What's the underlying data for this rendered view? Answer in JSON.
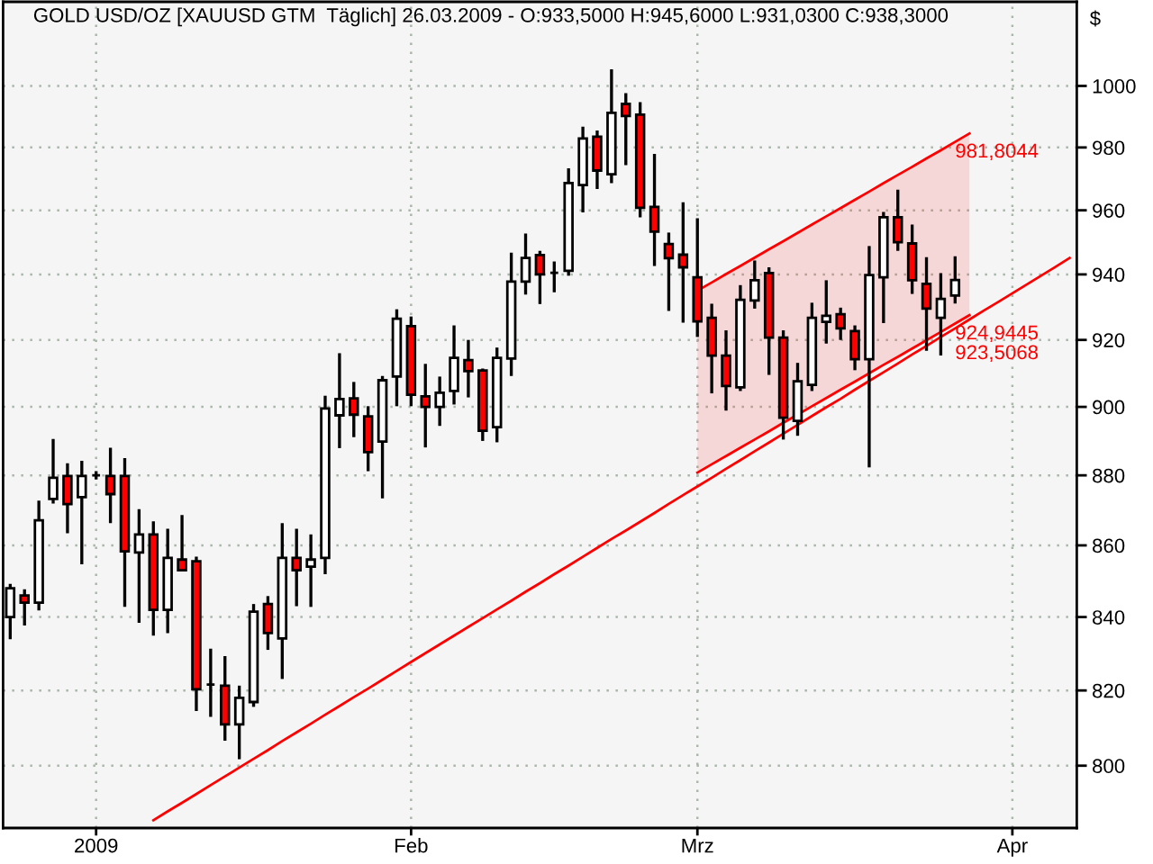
{
  "chart_data": {
    "type": "candlestick",
    "title": "GOLD USD/OZ [XAUUSD GTM  Täglich] 26.03.2009 - O:933,5000 H:945,6000 L:931,0300 C:938,3000",
    "ylabel": "$",
    "categories": [
      null,
      null,
      null,
      null,
      null,
      null,
      "2009",
      null,
      null,
      null,
      null,
      null,
      null,
      null,
      null,
      null,
      null,
      null,
      null,
      null,
      null,
      null,
      null,
      null,
      null,
      null,
      null,
      null,
      "Feb",
      null,
      null,
      null,
      null,
      null,
      null,
      null,
      null,
      null,
      null,
      null,
      null,
      null,
      null,
      null,
      null,
      null,
      null,
      null,
      "Mrz",
      null,
      null,
      null,
      null,
      null,
      null,
      null,
      null,
      null,
      null,
      null,
      null,
      null,
      null,
      null,
      null,
      null,
      null,
      null,
      null,
      null,
      "Apr",
      null,
      null,
      null,
      null
    ],
    "ohlc": [
      [
        840.0,
        849.2,
        833.9,
        848.0
      ],
      [
        846.0,
        847.7,
        837.7,
        844.0
      ],
      [
        844.0,
        872.7,
        841.8,
        867.1
      ],
      [
        873.2,
        890.6,
        871.9,
        879.3
      ],
      [
        879.8,
        883.5,
        863.4,
        871.7
      ],
      [
        873.7,
        884.2,
        854.7,
        879.8
      ],
      [
        880.0,
        881.2,
        878.8,
        880.0
      ],
      [
        879.8,
        888.0,
        866.3,
        874.6
      ],
      [
        879.8,
        885.0,
        842.8,
        858.3
      ],
      [
        858.0,
        870.3,
        838.4,
        863.1
      ],
      [
        863.1,
        866.8,
        834.9,
        842.0
      ],
      [
        842.0,
        864.7,
        835.6,
        856.5
      ],
      [
        856.0,
        868.6,
        852.8,
        853.0
      ],
      [
        855.5,
        856.8,
        814.5,
        820.3
      ],
      [
        821.6,
        831.3,
        812.9,
        821.6
      ],
      [
        821.3,
        829.3,
        806.6,
        810.9
      ],
      [
        810.9,
        821.3,
        801.7,
        818.0
      ],
      [
        816.9,
        843.6,
        815.6,
        841.5
      ],
      [
        843.6,
        845.8,
        831.0,
        835.6
      ],
      [
        834.1,
        866.3,
        823.1,
        856.5
      ],
      [
        856.5,
        864.7,
        843.0,
        853.0
      ],
      [
        854.0,
        863.1,
        842.8,
        856.0
      ],
      [
        856.5,
        903.3,
        851.9,
        899.5
      ],
      [
        897.5,
        916.0,
        887.9,
        902.3
      ],
      [
        902.5,
        907.4,
        891.1,
        897.7
      ],
      [
        897.2,
        900.2,
        881.2,
        886.7
      ],
      [
        889.8,
        909.2,
        873.4,
        907.9
      ],
      [
        909.0,
        929.3,
        900.2,
        926.4
      ],
      [
        924.2,
        927.1,
        900.2,
        903.6
      ],
      [
        903.1,
        912.8,
        888.1,
        900.0
      ],
      [
        900.0,
        909.0,
        894.4,
        904.2
      ],
      [
        904.7,
        924.4,
        900.7,
        914.6
      ],
      [
        913.9,
        920.0,
        902.8,
        910.6
      ],
      [
        910.8,
        911.4,
        890.0,
        893.0
      ],
      [
        894.0,
        917.7,
        889.6,
        914.6
      ],
      [
        914.4,
        946.7,
        909.2,
        937.8
      ],
      [
        937.8,
        952.7,
        933.8,
        945.1
      ],
      [
        946.0,
        947.3,
        930.9,
        940.0
      ],
      [
        940.5,
        944.0,
        934.5,
        940.5
      ],
      [
        941.1,
        973.3,
        939.6,
        968.6
      ],
      [
        968.0,
        986.7,
        959.3,
        982.9
      ],
      [
        983.5,
        985.5,
        966.7,
        972.6
      ],
      [
        971.4,
        1005.5,
        968.6,
        991.2
      ],
      [
        994.1,
        997.6,
        974.3,
        990.2
      ],
      [
        990.6,
        994.7,
        957.8,
        960.8
      ],
      [
        961.1,
        977.9,
        942.6,
        953.3
      ],
      [
        949.4,
        953.0,
        928.8,
        945.0
      ],
      [
        946.1,
        962.5,
        925.2,
        942.2
      ],
      [
        939.1,
        957.5,
        920.9,
        925.6
      ],
      [
        926.7,
        931.0,
        904.0,
        915.3
      ],
      [
        915.3,
        922.9,
        898.9,
        906.2
      ],
      [
        905.8,
        936.7,
        904.7,
        932.2
      ],
      [
        932.0,
        944.3,
        929.5,
        938.2
      ],
      [
        940.4,
        942.2,
        909.5,
        920.7
      ],
      [
        920.7,
        922.9,
        890.4,
        896.8
      ],
      [
        895.9,
        913.1,
        891.5,
        907.6
      ],
      [
        906.5,
        931.3,
        904.7,
        926.7
      ],
      [
        925.5,
        938.2,
        918.9,
        927.3
      ],
      [
        927.8,
        929.8,
        920.0,
        923.5
      ],
      [
        922.7,
        924.4,
        910.9,
        914.2
      ],
      [
        914.2,
        948.8,
        882.3,
        939.8
      ],
      [
        939.1,
        959.5,
        925.1,
        957.8
      ],
      [
        957.8,
        966.5,
        947.3,
        950.0
      ],
      [
        949.6,
        955.5,
        934.0,
        938.2
      ],
      [
        937.1,
        945.3,
        916.7,
        929.5
      ],
      [
        926.7,
        940.4,
        915.3,
        932.5
      ],
      [
        933.5,
        945.6,
        931.03,
        938.3
      ],
      null,
      null,
      null,
      null,
      null,
      null,
      null,
      null
    ],
    "colors": [
      "#ffffff",
      "#ff0000",
      "#ffffff",
      "#ffffff",
      "#ff0000",
      "#ffffff",
      "#000000",
      "#ff0000",
      "#ff0000",
      "#ffffff",
      "#ff0000",
      "#ffffff",
      "#ff0000",
      "#ff0000",
      "#000000",
      "#ff0000",
      "#ffffff",
      "#ffffff",
      "#ff0000",
      "#ffffff",
      "#ff0000",
      "#ffffff",
      "#ffffff",
      "#ffffff",
      "#ff0000",
      "#ff0000",
      "#ffffff",
      "#ffffff",
      "#ff0000",
      "#ff0000",
      "#ffffff",
      "#ffffff",
      "#ff0000",
      "#ff0000",
      "#ffffff",
      "#ffffff",
      "#ffffff",
      "#ff0000",
      "#000000",
      "#ffffff",
      "#ffffff",
      "#ff0000",
      "#ffffff",
      "#ff0000",
      "#ff0000",
      "#ff0000",
      "#ff0000",
      "#ff0000",
      "#ff0000",
      "#ff0000",
      "#ff0000",
      "#ffffff",
      "#ffffff",
      "#ff0000",
      "#ff0000",
      "#ffffff",
      "#ffffff",
      "#ffffff",
      "#ff0000",
      "#ff0000",
      "#ffffff",
      "#ffffff",
      "#ff0000",
      "#ff0000",
      "#ff0000",
      "#ffffff",
      "#ffffff",
      null,
      null,
      null,
      null,
      null,
      null,
      null,
      null
    ],
    "series": [
      {
        "type": "line",
        "color": "#ff0000",
        "values": [
          null,
          null,
          null,
          null,
          null,
          null,
          null,
          null,
          null,
          null,
          null,
          null,
          null,
          null,
          null,
          null,
          null,
          null,
          null,
          null,
          null,
          null,
          null,
          null,
          null,
          null,
          null,
          null,
          null,
          null,
          null,
          null,
          null,
          null,
          null,
          null,
          null,
          null,
          null,
          null,
          null,
          null,
          null,
          null,
          null,
          null,
          null,
          null,
          935.0,
          937.5,
          940.1,
          942.6,
          945.2,
          947.8,
          950.3,
          952.9,
          955.5,
          958.1,
          960.7,
          963.3,
          965.9,
          968.6,
          971.2,
          973.8,
          976.5,
          979.1,
          981.8044,
          984.5,
          null,
          null,
          null,
          null,
          null,
          null,
          null
        ],
        "upper": [
          null,
          null,
          null,
          null,
          null,
          null,
          null,
          null,
          null,
          null,
          null,
          null,
          null,
          null,
          null,
          null,
          null,
          null,
          null,
          null,
          null,
          null,
          null,
          null,
          null,
          null,
          null,
          null,
          null,
          null,
          null,
          null,
          null,
          null,
          null,
          null,
          null,
          null,
          null,
          null,
          null,
          null,
          null,
          null,
          null,
          null,
          null,
          null,
          935.0,
          937.5,
          940.1,
          942.6,
          945.2,
          947.8,
          950.3,
          952.9,
          955.5,
          958.1,
          960.7,
          963.3,
          965.9,
          968.6,
          971.2,
          973.8,
          976.5,
          979.1,
          981.8044,
          984.5,
          null,
          null,
          null,
          null,
          null,
          null,
          null
        ],
        "lower": [
          null,
          null,
          null,
          null,
          null,
          null,
          null,
          null,
          null,
          null,
          null,
          null,
          null,
          null,
          null,
          null,
          null,
          null,
          null,
          null,
          null,
          null,
          null,
          null,
          null,
          null,
          null,
          null,
          null,
          null,
          null,
          null,
          null,
          null,
          null,
          null,
          null,
          null,
          null,
          null,
          null,
          null,
          null,
          null,
          null,
          null,
          null,
          null,
          880.8,
          883.2,
          885.6,
          888.0,
          890.4,
          892.8,
          895.3,
          897.7,
          900.2,
          902.6,
          905.1,
          907.5,
          910.0,
          912.5,
          914.9,
          917.4,
          919.9,
          922.4,
          924.9445,
          927.5,
          null,
          null,
          null,
          null,
          null,
          null,
          null
        ],
        "value_labels": [
          null,
          null,
          null,
          null,
          null,
          null,
          null,
          null,
          null,
          null,
          null,
          null,
          null,
          null,
          null,
          null,
          null,
          null,
          null,
          null,
          null,
          null,
          null,
          null,
          null,
          null,
          null,
          null,
          null,
          null,
          null,
          null,
          null,
          null,
          null,
          null,
          null,
          null,
          null,
          null,
          null,
          null,
          null,
          null,
          null,
          null,
          null,
          null,
          null,
          null,
          null,
          null,
          null,
          null,
          null,
          null,
          null,
          null,
          null,
          null,
          null,
          null,
          null,
          null,
          null,
          null,
          "981,8044",
          null,
          null,
          null,
          null,
          null,
          null,
          null,
          null
        ]
      },
      {
        "type": "line",
        "color": "#ff0000",
        "values": [
          null,
          null,
          null,
          null,
          null,
          null,
          null,
          null,
          null,
          null,
          null,
          null,
          null,
          null,
          null,
          null,
          null,
          null,
          null,
          null,
          null,
          null,
          null,
          null,
          null,
          null,
          null,
          null,
          null,
          null,
          null,
          null,
          null,
          null,
          null,
          null,
          null,
          null,
          null,
          null,
          null,
          null,
          null,
          null,
          null,
          null,
          null,
          null,
          880.8,
          883.2,
          885.6,
          888.0,
          890.4,
          892.8,
          895.3,
          897.7,
          900.2,
          902.6,
          905.1,
          907.5,
          910.0,
          912.5,
          914.9,
          917.4,
          919.9,
          922.4,
          924.9445,
          927.5,
          null,
          null,
          null,
          null,
          null,
          null,
          null
        ],
        "value_labels": [
          null,
          null,
          null,
          null,
          null,
          null,
          null,
          null,
          null,
          null,
          null,
          null,
          null,
          null,
          null,
          null,
          null,
          null,
          null,
          null,
          null,
          null,
          null,
          null,
          null,
          null,
          null,
          null,
          null,
          null,
          null,
          null,
          null,
          null,
          null,
          null,
          null,
          null,
          null,
          null,
          null,
          null,
          null,
          null,
          null,
          null,
          null,
          null,
          null,
          null,
          null,
          null,
          null,
          null,
          null,
          null,
          null,
          null,
          null,
          null,
          null,
          null,
          null,
          null,
          null,
          null,
          "924,9445",
          null,
          null,
          null,
          null,
          null,
          null,
          null,
          null
        ]
      },
      {
        "type": "line",
        "color": "#ff0000",
        "values": [
          null,
          null,
          null,
          null,
          null,
          null,
          null,
          null,
          null,
          null,
          785.8,
          788.1,
          790.3,
          792.6,
          794.9,
          797.2,
          799.5,
          801.8,
          804.1,
          806.5,
          808.8,
          811.1,
          813.5,
          815.8,
          818.2,
          820.5,
          822.9,
          825.3,
          827.7,
          830.1,
          832.5,
          834.9,
          837.3,
          839.7,
          842.1,
          844.5,
          847.0,
          849.4,
          851.9,
          854.3,
          856.8,
          859.3,
          861.8,
          864.2,
          866.7,
          869.2,
          871.8,
          874.3,
          876.8,
          879.3,
          881.9,
          884.4,
          887.0,
          889.5,
          892.1,
          894.7,
          897.3,
          899.9,
          902.4,
          905.1,
          907.7,
          910.3,
          912.9,
          915.6,
          918.2,
          920.9,
          923.5068,
          926.2,
          928.9,
          931.5,
          934.2,
          936.9,
          939.6,
          942.3,
          945.1
        ],
        "value_labels": [
          null,
          null,
          null,
          null,
          null,
          null,
          null,
          null,
          null,
          null,
          null,
          null,
          null,
          null,
          null,
          null,
          null,
          null,
          null,
          null,
          null,
          null,
          null,
          null,
          null,
          null,
          null,
          null,
          null,
          null,
          null,
          null,
          null,
          null,
          null,
          null,
          null,
          null,
          null,
          null,
          null,
          null,
          null,
          null,
          null,
          null,
          null,
          null,
          null,
          null,
          null,
          null,
          null,
          null,
          null,
          null,
          null,
          null,
          null,
          null,
          null,
          null,
          null,
          null,
          null,
          null,
          "923,5068",
          null,
          null,
          null,
          null,
          null,
          null,
          null,
          null
        ]
      }
    ],
    "ylim": [
      783.8,
      1028
    ],
    "yticks": [
      800,
      820,
      840,
      860,
      880,
      900,
      920,
      940,
      960,
      980,
      1000
    ],
    "log": "y",
    "grid": true
  }
}
